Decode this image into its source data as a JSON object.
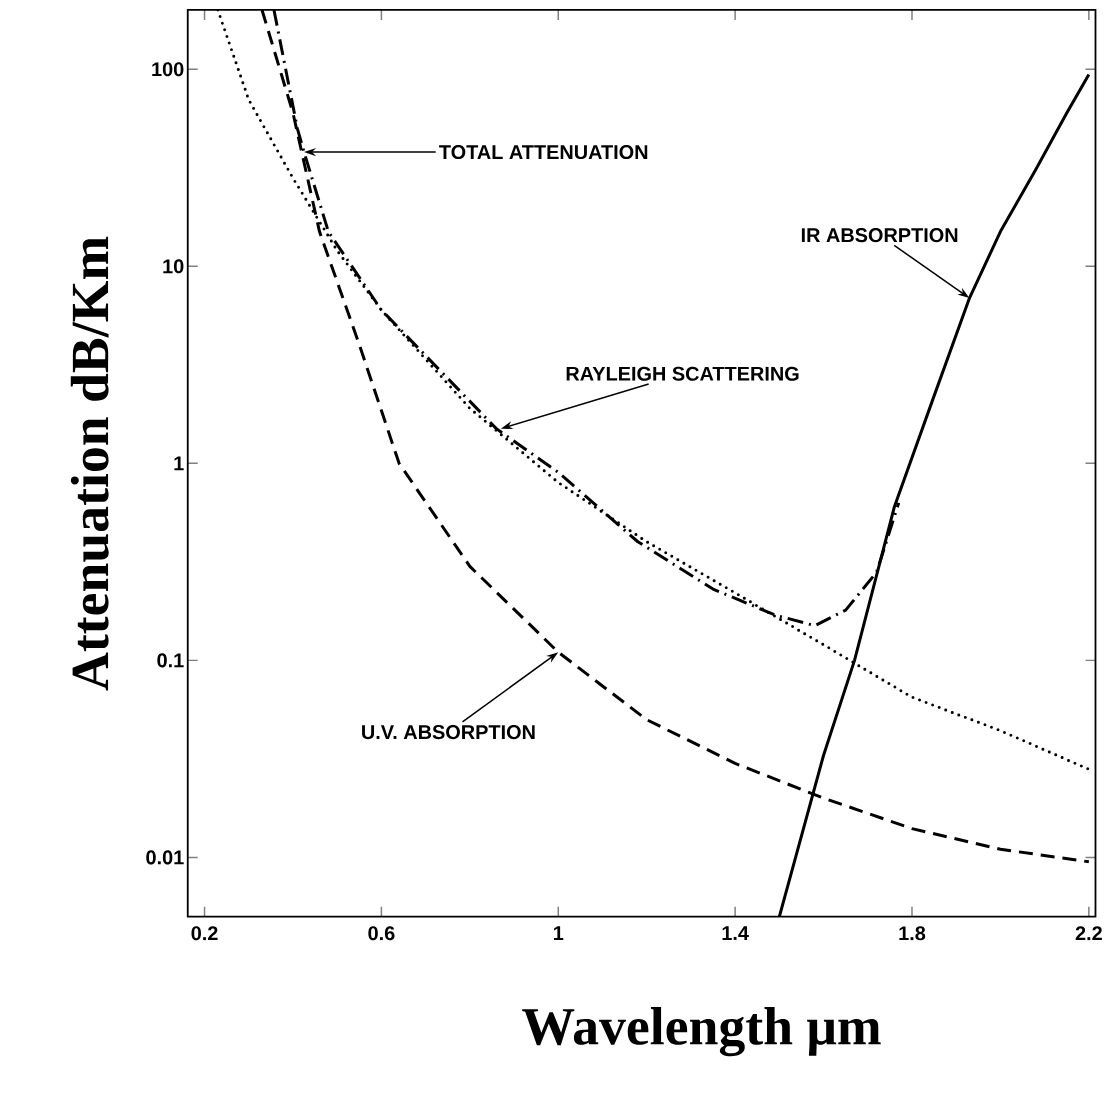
{
  "chart_data": {
    "type": "line",
    "xlabel": "Wavelength μm",
    "ylabel": "Attenuation dB/Km",
    "log": "y",
    "xlim": [
      0.162,
      2.215
    ],
    "ylim": [
      0.005,
      200
    ],
    "xticks": [
      0.2,
      0.6,
      1,
      1.4,
      1.8,
      2.2
    ],
    "yticks": [
      0.01,
      0.1,
      1,
      10,
      100
    ],
    "series": [
      {
        "color": "#000000",
        "line_style": "dashed",
        "x": [
          0.33,
          0.4,
          0.46,
          0.55,
          0.64,
          0.8,
          1.0,
          1.2,
          1.4,
          1.6,
          1.8,
          2.0,
          2.2
        ],
        "values": [
          200,
          60,
          15,
          4,
          1.0,
          0.3,
          0.11,
          0.05,
          0.03,
          0.02,
          0.014,
          0.011,
          0.0095
        ]
      },
      {
        "color": "#000000",
        "line_style": "dotted",
        "x": [
          0.23,
          0.3,
          0.4,
          0.5,
          0.6,
          0.8,
          1.0,
          1.2,
          1.4,
          1.6,
          1.8,
          2.0,
          2.2
        ],
        "values": [
          200,
          70,
          28,
          12,
          6,
          1.9,
          0.8,
          0.4,
          0.22,
          0.12,
          0.065,
          0.044,
          0.028
        ]
      },
      {
        "color": "#000000",
        "line_style": "dashdot",
        "x": [
          0.357,
          0.41,
          0.425,
          0.48,
          0.6,
          0.86,
          1.0,
          1.18,
          1.35,
          1.49,
          1.58,
          1.65,
          1.72,
          1.77
        ],
        "values": [
          200,
          50,
          38,
          15,
          6,
          1.5,
          0.9,
          0.4,
          0.23,
          0.17,
          0.15,
          0.18,
          0.28,
          0.63
        ]
      },
      {
        "color": "#000000",
        "line_style": "solid",
        "x": [
          1.5,
          1.6,
          1.67,
          1.76,
          1.85,
          1.93,
          2.0,
          2.08,
          2.15,
          2.2
        ],
        "values": [
          0.005,
          0.033,
          0.1,
          0.6,
          2.2,
          6.9,
          15,
          31,
          60,
          94
        ]
      }
    ],
    "annotations": [
      {
        "text": "TOTAL ATTENUATION",
        "x": 0.425,
        "y": 38
      },
      {
        "text": "IR ABSORPTION",
        "x": 1.93,
        "y": 6.9
      },
      {
        "text": "RAYLEIGH SCATTERING",
        "x": 0.87,
        "y": 1.5
      },
      {
        "text": "U.V. ABSORPTION",
        "x": 1.0,
        "y": 0.11
      }
    ]
  }
}
